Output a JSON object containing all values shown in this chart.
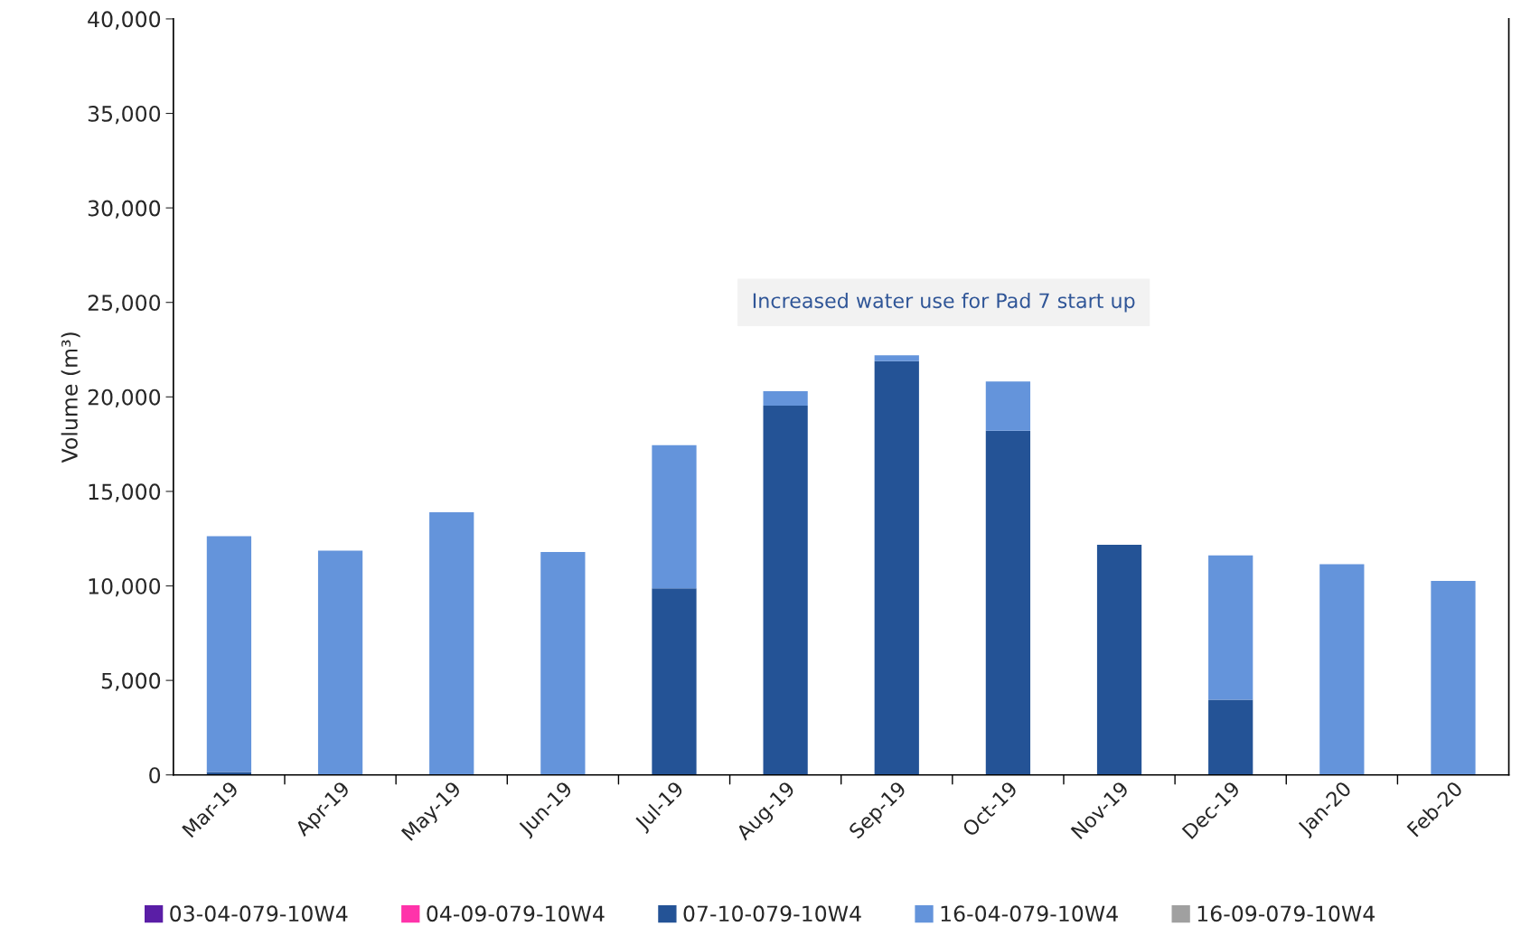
{
  "chart_data": {
    "type": "bar",
    "stacked": true,
    "ylabel": "Volume (m³)",
    "categories": [
      "Mar-19",
      "Apr-19",
      "May-19",
      "Jun-19",
      "Jul-19",
      "Aug-19",
      "Sep-19",
      "Oct-19",
      "Nov-19",
      "Dec-19",
      "Jan-20",
      "Feb-20"
    ],
    "series": [
      {
        "name": "03-04-079-10W4",
        "color": "#5a1ea6",
        "values": [
          0,
          0,
          0,
          0,
          0,
          0,
          0,
          0,
          0,
          0,
          0,
          0
        ]
      },
      {
        "name": "04-09-079-10W4",
        "color": "#ff33aa",
        "values": [
          0,
          0,
          0,
          0,
          0,
          0,
          0,
          0,
          0,
          0,
          0,
          0
        ]
      },
      {
        "name": "07-10-079-10W4",
        "color": "#245396",
        "values": [
          150,
          0,
          0,
          0,
          9870,
          19540,
          21890,
          18210,
          12170,
          3980,
          0,
          0
        ]
      },
      {
        "name": "16-04-079-10W4",
        "color": "#6494db",
        "values": [
          12480,
          11860,
          13900,
          11790,
          7580,
          760,
          310,
          2610,
          0,
          7630,
          11150,
          10260
        ]
      },
      {
        "name": "16-09-079-10W4",
        "color": "#a0a0a0",
        "values": [
          0,
          0,
          0,
          0,
          0,
          0,
          0,
          0,
          0,
          0,
          0,
          0
        ]
      }
    ],
    "ylim": [
      0,
      40000
    ],
    "yticks": [
      0,
      {
        "value": 5000,
        "label": "5,000"
      },
      {
        "value": 10000,
        "label": "10,000"
      },
      {
        "value": 15000,
        "label": "15,000"
      },
      {
        "value": 20000,
        "label": "20,000"
      },
      {
        "value": 25000,
        "label": "25,000"
      },
      {
        "value": 30000,
        "label": "30,000"
      },
      {
        "value": 35000,
        "label": "35,000"
      },
      {
        "value": 40000,
        "label": "40,000"
      }
    ],
    "annotations": [
      "Increased water use for Pad 7 start up"
    ],
    "grid": false,
    "legend": "bottom"
  }
}
